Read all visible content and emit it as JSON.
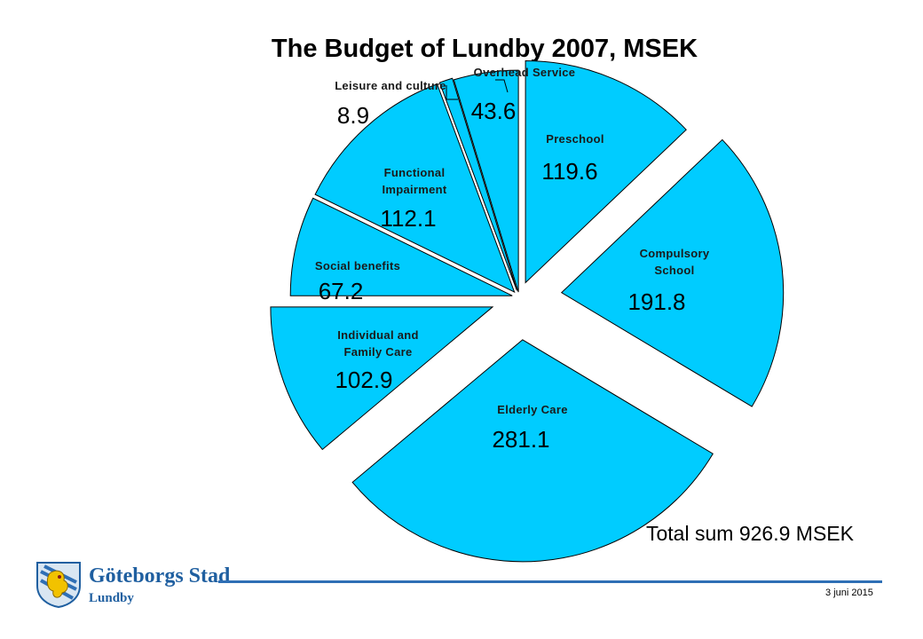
{
  "title": "The Budget of Lundby 2007, MSEK",
  "chart_data": {
    "type": "pie",
    "title": "The Budget of Lundby 2007, MSEK",
    "unit": "MSEK",
    "color": "#00ccff",
    "slices": [
      {
        "label_lines": [
          "Preschool"
        ],
        "value": 119.6,
        "value_text": "119.6"
      },
      {
        "label_lines": [
          "Compulsory",
          "School"
        ],
        "value": 191.8,
        "value_text": "191.8"
      },
      {
        "label_lines": [
          "Elderly Care"
        ],
        "value": 281.1,
        "value_text": "281.1"
      },
      {
        "label_lines": [
          "Individual and",
          "Family Care"
        ],
        "value": 102.9,
        "value_text": "102.9"
      },
      {
        "label_lines": [
          "Social benefits"
        ],
        "value": 67.2,
        "value_text": "67.2"
      },
      {
        "label_lines": [
          "Functional",
          "Impairment"
        ],
        "value": 112.1,
        "value_text": "112.1"
      },
      {
        "label_lines": [
          "Leisure and culture"
        ],
        "value": 8.9,
        "value_text": "8.9"
      },
      {
        "label_lines": [
          "Overhead Service"
        ],
        "value": 43.6,
        "value_text": "43.6"
      }
    ]
  },
  "total": {
    "label": "Total sum",
    "value": "926.9",
    "unit": "MSEK"
  },
  "footer": {
    "org": "Göteborgs Stad",
    "district": "Lundby",
    "date": "3 juni 2015"
  }
}
